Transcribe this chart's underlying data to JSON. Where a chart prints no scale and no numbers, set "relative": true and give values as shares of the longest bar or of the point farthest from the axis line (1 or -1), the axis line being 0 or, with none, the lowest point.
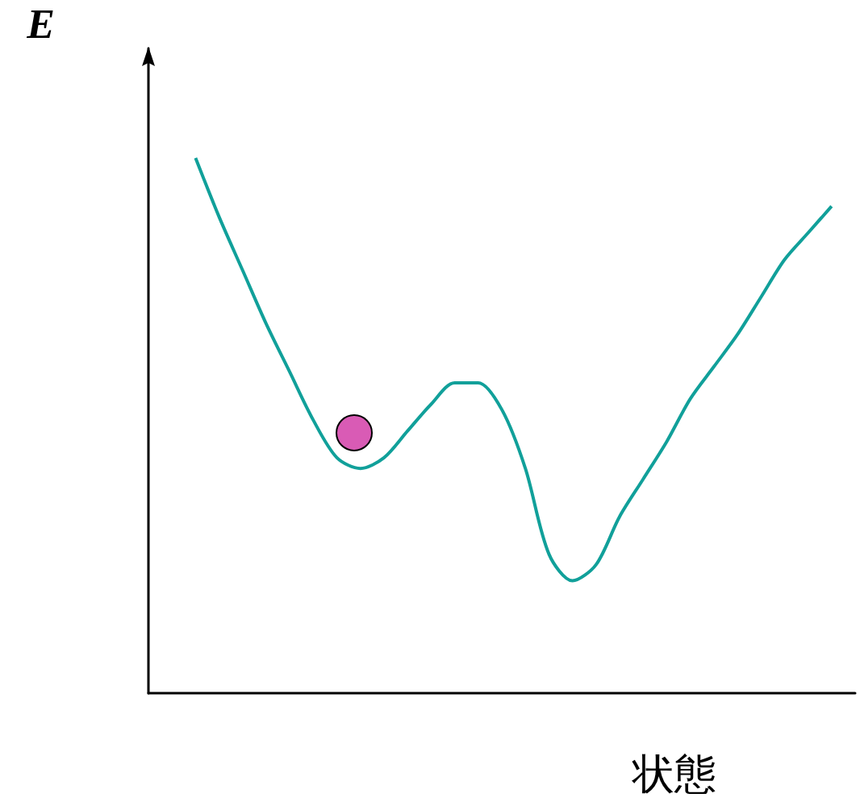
{
  "chart_data": {
    "type": "line",
    "relative": true,
    "ylabel": "E",
    "xlabel": "状態",
    "categories": [
      null,
      null,
      null,
      null,
      null,
      null,
      null,
      null,
      null,
      null,
      null,
      null,
      null,
      null,
      null,
      null,
      null,
      null,
      null,
      null,
      null,
      null,
      null,
      null,
      null,
      null,
      null,
      null,
      null,
      null,
      null
    ],
    "series": [
      {
        "color": "#11a09a",
        "values": [
          null,
          null,
          1,
          0.89,
          0.79,
          0.69,
          0.6,
          0.51,
          0.44,
          0.42,
          0.44,
          0.49,
          0.54,
          0.58,
          0.58,
          0.53,
          0.42,
          0.26,
          0.21,
          0.24,
          0.33,
          0.4,
          0.47,
          0.55,
          0.61,
          0.67,
          0.74,
          0.81,
          0.86,
          0.91,
          null
        ]
      }
    ],
    "marker": "none",
    "grid": false
  }
}
